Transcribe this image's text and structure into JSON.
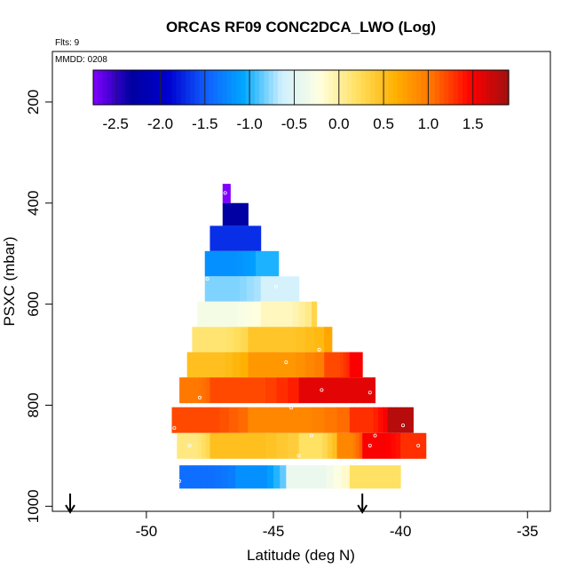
{
  "chart_data": {
    "type": "heatmap",
    "title": "ORCAS RF09 CONC2DCA_LWO (Log)",
    "flights_note": "Flts: 9",
    "date_note": "MMDD: 0208",
    "xlabel": "Latitude (deg N)",
    "ylabel": "PSXC (mbar)",
    "xlim": [
      -53.7,
      -34.1
    ],
    "ylim": [
      1010,
      100
    ],
    "xticks": [
      -50,
      -45,
      -40,
      -35
    ],
    "yticks": [
      200,
      400,
      600,
      800,
      1000
    ],
    "colorbar": {
      "range": [
        -2.75,
        1.9
      ],
      "ticks": [
        -2.5,
        -2.0,
        -1.5,
        -1.0,
        -0.5,
        0.0,
        0.5,
        1.0,
        1.5
      ],
      "tick_labels": [
        "-2.5",
        "-2.0",
        "-1.5",
        "-1.0",
        "-0.5",
        "0.0",
        "0.5",
        "1.0",
        "1.5"
      ],
      "colors": [
        "#8000ff",
        "#0000a0",
        "#0000d0",
        "#1060ff",
        "#00a8ff",
        "#d0f0ff",
        "#ffffe0",
        "#ffe060",
        "#ffb000",
        "#ff7000",
        "#ff0000",
        "#a01010"
      ]
    },
    "markers": [
      {
        "name": "arrow-1",
        "latitude": -53.0
      },
      {
        "name": "arrow-2",
        "latitude": -41.5
      }
    ],
    "rows": [
      {
        "pressure": 380,
        "segments": [
          {
            "lat_from": -47.0,
            "lat_to": -46.7,
            "value": -2.8
          }
        ]
      },
      {
        "pressure": 420,
        "segments": [
          {
            "lat_from": -47.0,
            "lat_to": -46.0,
            "value": -2.3
          }
        ]
      },
      {
        "pressure": 470,
        "segments": [
          {
            "lat_from": -47.5,
            "lat_to": -45.5,
            "value": -1.7
          }
        ]
      },
      {
        "pressure": 520,
        "segments": [
          {
            "lat_from": -47.7,
            "lat_to": -45.7,
            "value": -1.2
          },
          {
            "lat_from": -45.7,
            "lat_to": -44.8,
            "value": -1.0
          }
        ]
      },
      {
        "pressure": 570,
        "segments": [
          {
            "lat_from": -47.7,
            "lat_to": -45.5,
            "value": -0.8
          },
          {
            "lat_from": -45.5,
            "lat_to": -44.0,
            "value": -0.6
          }
        ]
      },
      {
        "pressure": 620,
        "segments": [
          {
            "lat_from": -48.0,
            "lat_to": -45.5,
            "value": -0.3
          },
          {
            "lat_from": -45.5,
            "lat_to": -43.5,
            "value": -0.1
          },
          {
            "lat_from": -43.5,
            "lat_to": -43.3,
            "value": 0.3
          }
        ]
      },
      {
        "pressure": 670,
        "segments": [
          {
            "lat_from": -48.2,
            "lat_to": -46.0,
            "value": 0.15
          },
          {
            "lat_from": -46.0,
            "lat_to": -43.0,
            "value": 0.45
          },
          {
            "lat_from": -43.0,
            "lat_to": -42.7,
            "value": 0.7
          }
        ]
      },
      {
        "pressure": 720,
        "segments": [
          {
            "lat_from": -48.4,
            "lat_to": -46.0,
            "value": 0.5
          },
          {
            "lat_from": -46.0,
            "lat_to": -43.0,
            "value": 0.8
          },
          {
            "lat_from": -43.0,
            "lat_to": -42.0,
            "value": 1.2
          },
          {
            "lat_from": -42.0,
            "lat_to": -41.5,
            "value": 1.5
          }
        ]
      },
      {
        "pressure": 770,
        "segments": [
          {
            "lat_from": -48.7,
            "lat_to": -47.5,
            "value": 1.0
          },
          {
            "lat_from": -47.5,
            "lat_to": -44.0,
            "value": 1.2
          },
          {
            "lat_from": -44.0,
            "lat_to": -41.0,
            "value": 1.6
          }
        ]
      },
      {
        "pressure": 830,
        "segments": [
          {
            "lat_from": -49.0,
            "lat_to": -46.0,
            "value": 1.2
          },
          {
            "lat_from": -46.0,
            "lat_to": -42.0,
            "value": 0.9
          },
          {
            "lat_from": -42.0,
            "lat_to": -40.5,
            "value": 1.3
          },
          {
            "lat_from": -40.5,
            "lat_to": -39.5,
            "value": 1.8
          }
        ]
      },
      {
        "pressure": 880,
        "segments": [
          {
            "lat_from": -48.8,
            "lat_to": -47.5,
            "value": 0.1
          },
          {
            "lat_from": -47.5,
            "lat_to": -44.0,
            "value": 0.5
          },
          {
            "lat_from": -44.0,
            "lat_to": -42.5,
            "value": 0.2
          },
          {
            "lat_from": -42.5,
            "lat_to": -41.5,
            "value": 0.9
          },
          {
            "lat_from": -41.5,
            "lat_to": -40.0,
            "value": 1.5
          },
          {
            "lat_from": -40.0,
            "lat_to": -39.0,
            "value": 1.3
          }
        ]
      },
      {
        "pressure": 945,
        "segments": [
          {
            "lat_from": -48.7,
            "lat_to": -46.5,
            "value": -1.4
          },
          {
            "lat_from": -46.5,
            "lat_to": -44.5,
            "value": -1.2
          },
          {
            "lat_from": -44.5,
            "lat_to": -42.0,
            "value": -0.4
          },
          {
            "lat_from": -42.0,
            "lat_to": -40.0,
            "value": 0.2
          }
        ]
      }
    ],
    "points": [
      {
        "lat": -46.9,
        "pressure": 380
      },
      {
        "lat": -47.7,
        "pressure": 490
      },
      {
        "lat": -47.6,
        "pressure": 550
      },
      {
        "lat": -44.9,
        "pressure": 565
      },
      {
        "lat": -43.2,
        "pressure": 690
      },
      {
        "lat": -44.5,
        "pressure": 715
      },
      {
        "lat": -47.9,
        "pressure": 785
      },
      {
        "lat": -43.1,
        "pressure": 770
      },
      {
        "lat": -44.3,
        "pressure": 805
      },
      {
        "lat": -41.2,
        "pressure": 775
      },
      {
        "lat": -48.9,
        "pressure": 845
      },
      {
        "lat": -43.5,
        "pressure": 860
      },
      {
        "lat": -41.0,
        "pressure": 860
      },
      {
        "lat": -39.9,
        "pressure": 840
      },
      {
        "lat": -48.3,
        "pressure": 880
      },
      {
        "lat": -44.0,
        "pressure": 900
      },
      {
        "lat": -41.2,
        "pressure": 880
      },
      {
        "lat": -39.3,
        "pressure": 880
      },
      {
        "lat": -48.7,
        "pressure": 950
      }
    ]
  }
}
